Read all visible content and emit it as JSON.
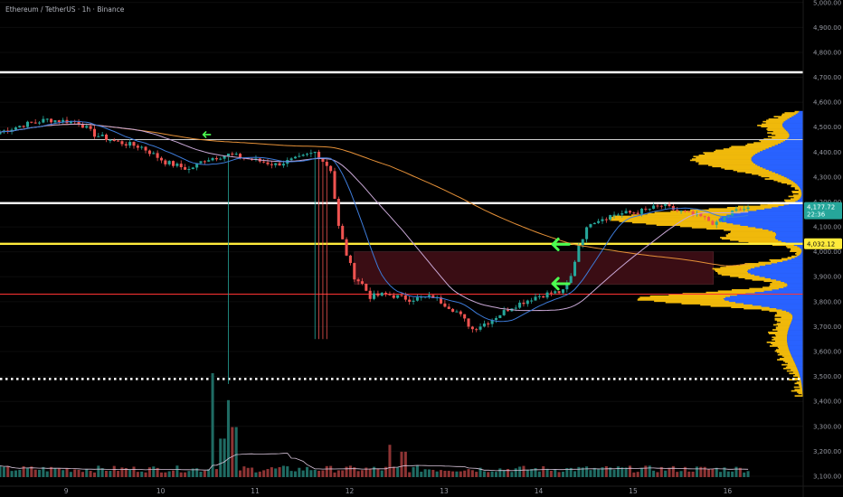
{
  "header": {
    "symbol_line": "Ethereum / TetherUS · 1h · Binance"
  },
  "badges": {
    "last_price": "4,177.72",
    "countdown": "22:36",
    "level_price": "4,032.12"
  },
  "colors": {
    "up": "#26a69a",
    "down": "#ef5350",
    "ma_fast": "#3d7bd9",
    "ma_slow": "#c9a8d6",
    "ma_long": "#e69138",
    "volume_ma": "#d9c6dc",
    "profile_up": "#2962ff",
    "profile_down": "#f0b90b",
    "level_yellow": "#ffeb3b",
    "level_red": "#ff3333",
    "level_white": "#ffffff",
    "zone_fill": "#3a0d14",
    "arrow": "#4cff50",
    "badge_last": "#26a69a",
    "badge_level": "#ffeb3b"
  },
  "chart_data": {
    "type": "candlestick",
    "title": "Ethereum / TetherUS · 1h · Binance",
    "x_tick_labels": [
      "9",
      "10",
      "11",
      "12",
      "13",
      "14",
      "15",
      "16"
    ],
    "x_tick_days": [
      9,
      10,
      11,
      12,
      13,
      14,
      15,
      16
    ],
    "y_tick_labels": [
      "3,100.00",
      "3,200.00",
      "3,300.00",
      "3,400.00",
      "3,500.00",
      "3,600.00",
      "3,700.00",
      "3,800.00",
      "3,900.00",
      "4,000.00",
      "4,100.00",
      "4,200.00",
      "4,300.00",
      "4,400.00",
      "4,500.00",
      "4,600.00",
      "4,700.00",
      "4,800.00",
      "4,900.00",
      "5,000.00"
    ],
    "y_tick_values": [
      3100,
      3200,
      3300,
      3400,
      3500,
      3600,
      3700,
      3800,
      3900,
      4000,
      4100,
      4200,
      4300,
      4400,
      4500,
      4600,
      4700,
      4800,
      4900,
      5000
    ],
    "ylim": [
      3060,
      5010
    ],
    "xlim_days": [
      8.3,
      16.8
    ],
    "last_price": 4177.72,
    "horizontal_levels": [
      {
        "price": 4720,
        "color": "#ffffff",
        "style": "solid"
      },
      {
        "price": 4450,
        "color": "#d0d0d0",
        "style": "solid"
      },
      {
        "price": 4195,
        "color": "#ffffff",
        "style": "solid"
      },
      {
        "price": 4032,
        "color": "#ffeb3b",
        "style": "solid"
      },
      {
        "price": 3830,
        "color": "#ff3333",
        "style": "solid"
      },
      {
        "price": 3490,
        "color": "#ffffff",
        "style": "dotted"
      }
    ],
    "zone": {
      "price_top": 4000,
      "price_bottom": 3870,
      "day_start": 12.05,
      "day_end": 15.85
    },
    "arrows": [
      {
        "day": 10.45,
        "price": 4470,
        "size": "small"
      },
      {
        "day": 14.15,
        "price": 4030,
        "size": "large"
      },
      {
        "day": 14.15,
        "price": 3872,
        "size": "large"
      }
    ],
    "price_path": {
      "day_start": 8.3,
      "hours": 128,
      "waypoints": [
        [
          0,
          4480
        ],
        [
          6,
          4510
        ],
        [
          12,
          4530
        ],
        [
          20,
          4520
        ],
        [
          24,
          4470
        ],
        [
          30,
          4440
        ],
        [
          36,
          4420
        ],
        [
          42,
          4360
        ],
        [
          48,
          4330
        ],
        [
          52,
          4370
        ],
        [
          58,
          4390
        ],
        [
          64,
          4370
        ],
        [
          70,
          4350
        ],
        [
          76,
          4375
        ],
        [
          80,
          4400
        ],
        [
          84,
          4330
        ],
        [
          86,
          4100
        ],
        [
          88,
          3990
        ],
        [
          90,
          3900
        ],
        [
          92,
          3870
        ],
        [
          94,
          3820
        ],
        [
          98,
          3830
        ],
        [
          104,
          3810
        ],
        [
          110,
          3820
        ],
        [
          116,
          3760
        ],
        [
          120,
          3690
        ],
        [
          124,
          3720
        ],
        [
          130,
          3780
        ],
        [
          136,
          3820
        ],
        [
          140,
          3835
        ],
        [
          143,
          3840
        ],
        [
          145,
          3900
        ],
        [
          147,
          4030
        ],
        [
          150,
          4120
        ],
        [
          156,
          4150
        ],
        [
          162,
          4160
        ],
        [
          168,
          4185
        ],
        [
          172,
          4165
        ],
        [
          178,
          4140
        ],
        [
          182,
          4110
        ],
        [
          186,
          4160
        ],
        [
          190,
          4177.72
        ]
      ],
      "seed": 7
    },
    "volume_spikes": [
      {
        "day": 10.55,
        "volume": 1350
      },
      {
        "day": 10.72,
        "volume": 1000
      },
      {
        "day": 10.78,
        "volume": 650
      },
      {
        "day": 10.66,
        "volume": 500
      },
      {
        "day": 12.42,
        "volume": 420
      },
      {
        "day": 12.58,
        "volume": 330
      }
    ],
    "volume_profile": {
      "bins_from": 3420,
      "bins_to": 4560,
      "step": 5,
      "peaks": [
        {
          "price": 4130,
          "total": 210,
          "width": 45,
          "buy_share": 0.45
        },
        {
          "price": 3810,
          "total": 170,
          "width": 35,
          "buy_share": 0.5
        },
        {
          "price": 3920,
          "total": 95,
          "width": 40,
          "buy_share": 0.65
        },
        {
          "price": 4050,
          "total": 75,
          "width": 25,
          "buy_share": 0.35
        },
        {
          "price": 4370,
          "total": 115,
          "width": 70,
          "buy_share": 0.5
        },
        {
          "price": 4510,
          "total": 40,
          "width": 40,
          "buy_share": 0.55
        },
        {
          "price": 3650,
          "total": 30,
          "width": 120,
          "buy_share": 0.6
        }
      ]
    }
  }
}
